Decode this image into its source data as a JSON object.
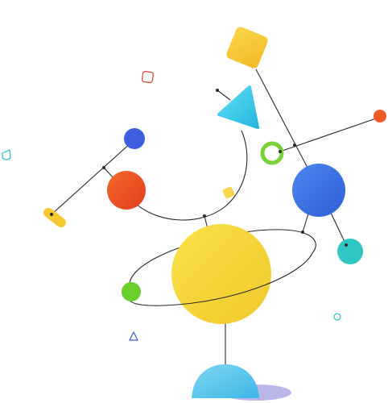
{
  "scene": {
    "description_label": "",
    "colors": {
      "background": "#ffffff",
      "wire": "#2b2b2b",
      "yellow": "#f6d335",
      "orange_yellow": "#f7c22e",
      "red_orange": "#ee4a22",
      "blue": "#3b6ee0",
      "dark_blue": "#3a5bdc",
      "cyan": "#38c9e6",
      "teal": "#2cc7c2",
      "green": "#6ad12f",
      "sky": "#5bc8ee",
      "shadow": "#b8b6e8"
    },
    "icons": {
      "square_outline": "rounded-square-outline",
      "triangle_outline_left": "rounded-triangle-outline",
      "triangle_outline_bottom": "rounded-triangle-outline",
      "circle_outline": "small-circle-outline"
    }
  }
}
